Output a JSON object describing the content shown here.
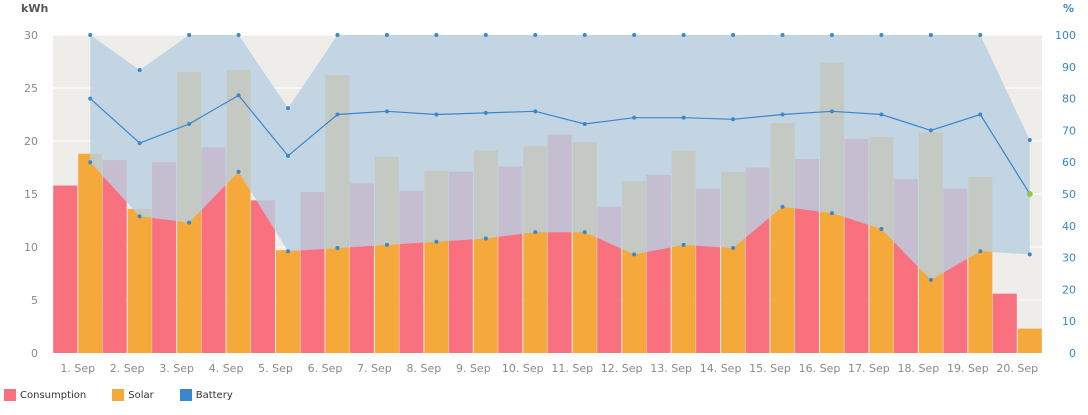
{
  "colors": {
    "consumption": "#f9717f",
    "solar": "#f6a93b",
    "battery": "#3a87cd",
    "battery_area": "#b9cfe2",
    "plot_bg": "#efedea",
    "grid": "#ffffff",
    "axis_text": "#8a8a8a",
    "right_axis_text": "#3a87cd"
  },
  "chart_data": {
    "type": "bar",
    "categories": [
      "1. Sep",
      "2. Sep",
      "3. Sep",
      "4. Sep",
      "5. Sep",
      "6. Sep",
      "7. Sep",
      "8. Sep",
      "9. Sep",
      "10. Sep",
      "11. Sep",
      "12. Sep",
      "13. Sep",
      "14. Sep",
      "15. Sep",
      "16. Sep",
      "17. Sep",
      "18. Sep",
      "19. Sep",
      "20. Sep"
    ],
    "y_left": {
      "unit": "kWh",
      "min": 0,
      "max": 30,
      "ticks": [
        0,
        5,
        10,
        15,
        20,
        25,
        30
      ]
    },
    "y_right": {
      "unit": "%",
      "min": 0,
      "max": 100,
      "ticks": [
        0,
        10,
        20,
        30,
        40,
        50,
        60,
        70,
        80,
        90,
        100
      ]
    },
    "grid": true,
    "legend_position": "bottom-left",
    "series": [
      {
        "name": "Consumption",
        "type": "bar",
        "axis": "left",
        "values": [
          15.8,
          18.2,
          18.0,
          19.4,
          14.4,
          15.2,
          16.0,
          15.3,
          17.1,
          17.6,
          20.6,
          13.8,
          16.8,
          15.5,
          17.5,
          18.3,
          20.2,
          16.4,
          15.5,
          5.6
        ]
      },
      {
        "name": "Solar",
        "type": "bar",
        "axis": "left",
        "values": [
          18.8,
          13.6,
          26.5,
          26.7,
          9.7,
          26.2,
          18.5,
          17.2,
          19.1,
          19.5,
          19.9,
          16.2,
          19.1,
          17.1,
          21.7,
          27.4,
          20.4,
          20.8,
          16.6,
          2.3
        ]
      },
      {
        "name": "Battery",
        "type": "area-range",
        "axis": "right",
        "min": [
          60,
          43,
          41,
          57,
          32,
          33,
          34,
          35,
          36,
          38,
          38,
          31,
          34,
          33,
          46,
          44,
          39,
          23,
          32,
          31
        ],
        "max": [
          100,
          89,
          100,
          100,
          77,
          100,
          100,
          100,
          100,
          100,
          100,
          100,
          100,
          100,
          100,
          100,
          100,
          100,
          100,
          67
        ],
        "avg": [
          80,
          66,
          72,
          81,
          62,
          75,
          76,
          75,
          75.5,
          76,
          72,
          74,
          74,
          73.5,
          75,
          76,
          75,
          70,
          75,
          50
        ],
        "latest": 50
      }
    ]
  }
}
